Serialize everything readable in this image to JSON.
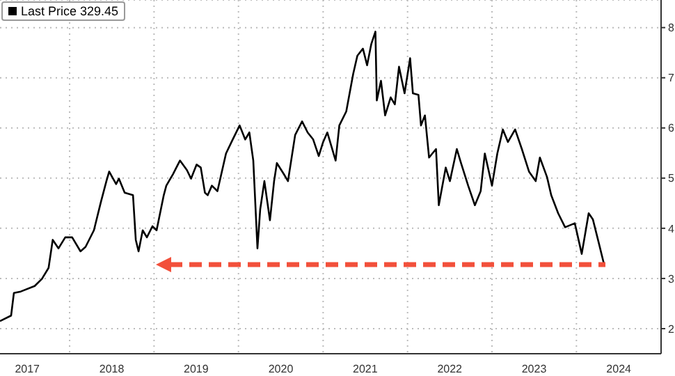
{
  "chart_data": {
    "type": "line",
    "legend": "top left",
    "grid": true,
    "xlim": [
      "2017-03-06",
      "2025-01-01"
    ],
    "xticks": [
      {
        "value": "2018-01-01",
        "label": null
      },
      {
        "value": "2019-01-01",
        "label": null
      },
      {
        "value": "2020-01-01",
        "label": null
      },
      {
        "value": "2021-01-01",
        "label": null
      },
      {
        "value": "2022-01-01",
        "label": null
      },
      {
        "value": "2023-01-01",
        "label": null
      },
      {
        "value": "2024-01-01",
        "label": null
      },
      {
        "value": "2017-07-02",
        "label": "2017"
      },
      {
        "value": "2018-07-02",
        "label": "2018"
      },
      {
        "value": "2019-07-02",
        "label": "2019"
      },
      {
        "value": "2020-07-02",
        "label": "2020"
      },
      {
        "value": "2021-07-02",
        "label": "2021"
      },
      {
        "value": "2022-07-02",
        "label": "2022"
      },
      {
        "value": "2023-07-02",
        "label": "2023"
      },
      {
        "value": "2024-07-02",
        "label": "2024"
      }
    ],
    "ylim": [
      1.5,
      8.55
    ],
    "yticks": [
      2,
      3,
      4,
      5,
      6,
      7,
      8
    ],
    "x": [
      "2017-03-06",
      "2017-04-23",
      "2017-05-05",
      "2017-06-04",
      "2017-08-03",
      "2017-09-03",
      "2017-10-02",
      "2017-10-20",
      "2017-11-14",
      "2017-12-13",
      "2018-01-12",
      "2018-02-17",
      "2018-03-11",
      "2018-04-16",
      "2018-05-16",
      "2018-06-09",
      "2018-06-21",
      "2018-07-21",
      "2018-08-02",
      "2018-08-27",
      "2018-10-02",
      "2018-10-14",
      "2018-10-26",
      "2018-11-13",
      "2018-12-01",
      "2018-12-25",
      "2019-01-12",
      "2019-02-12",
      "2019-02-23",
      "2019-03-24",
      "2019-04-23",
      "2019-05-23",
      "2019-06-10",
      "2019-07-04",
      "2019-07-22",
      "2019-08-09",
      "2019-08-21",
      "2019-09-08",
      "2019-10-02",
      "2019-11-08",
      "2019-12-07",
      "2020-01-06",
      "2020-01-30",
      "2020-02-17",
      "2020-03-05",
      "2020-03-23",
      "2020-04-04",
      "2020-04-22",
      "2020-05-16",
      "2020-06-03",
      "2020-06-15",
      "2020-07-15",
      "2020-08-02",
      "2020-09-02",
      "2020-10-02",
      "2020-10-26",
      "2020-11-19",
      "2020-12-13",
      "2021-01-01",
      "2021-01-19",
      "2021-02-24",
      "2021-03-12",
      "2021-04-11",
      "2021-05-11",
      "2021-05-29",
      "2021-06-22",
      "2021-07-10",
      "2021-07-28",
      "2021-08-15",
      "2021-08-21",
      "2021-09-08",
      "2021-09-26",
      "2021-10-20",
      "2021-11-07",
      "2021-11-25",
      "2021-12-19",
      "2022-01-12",
      "2022-01-24",
      "2022-02-17",
      "2022-02-28",
      "2022-03-17",
      "2022-04-04",
      "2022-05-04",
      "2022-05-16",
      "2022-06-15",
      "2022-07-03",
      "2022-08-02",
      "2022-08-20",
      "2022-09-20",
      "2022-10-19",
      "2022-11-13",
      "2022-12-01",
      "2023-01-01",
      "2023-01-24",
      "2023-02-17",
      "2023-03-11",
      "2023-04-11",
      "2023-05-10",
      "2023-06-10",
      "2023-07-09",
      "2023-07-27",
      "2023-08-27",
      "2023-09-14",
      "2023-10-14",
      "2023-11-13",
      "2023-12-25",
      "2024-01-24",
      "2024-02-23",
      "2024-03-12",
      "2024-04-05",
      "2024-04-29"
    ],
    "series": [
      {
        "name": "Last Price 329.45",
        "color": "#000000",
        "values": [
          2.15,
          2.26,
          2.71,
          2.74,
          2.85,
          2.99,
          3.21,
          3.77,
          3.6,
          3.82,
          3.82,
          3.54,
          3.63,
          3.96,
          4.52,
          4.94,
          5.13,
          4.88,
          4.99,
          4.71,
          4.66,
          3.77,
          3.54,
          3.96,
          3.82,
          4.04,
          3.96,
          4.66,
          4.85,
          5.08,
          5.35,
          5.16,
          4.99,
          5.27,
          5.21,
          4.71,
          4.66,
          4.85,
          4.74,
          5.49,
          5.77,
          6.05,
          5.77,
          5.91,
          5.35,
          3.6,
          4.38,
          4.94,
          4.16,
          4.94,
          5.3,
          5.08,
          4.94,
          5.86,
          6.13,
          5.91,
          5.77,
          5.44,
          5.72,
          5.91,
          5.35,
          6.05,
          6.33,
          7.08,
          7.44,
          7.58,
          7.25,
          7.67,
          7.92,
          6.55,
          6.94,
          6.25,
          6.61,
          6.47,
          7.22,
          6.69,
          7.39,
          6.69,
          6.66,
          6.05,
          6.25,
          5.41,
          5.58,
          4.46,
          5.21,
          4.94,
          5.58,
          5.3,
          4.85,
          4.46,
          4.74,
          5.49,
          4.85,
          5.49,
          5.97,
          5.72,
          5.97,
          5.58,
          5.13,
          4.94,
          5.41,
          5.02,
          4.66,
          4.3,
          4.02,
          4.1,
          3.49,
          4.3,
          4.18,
          3.74,
          3.29
        ]
      }
    ]
  }
}
